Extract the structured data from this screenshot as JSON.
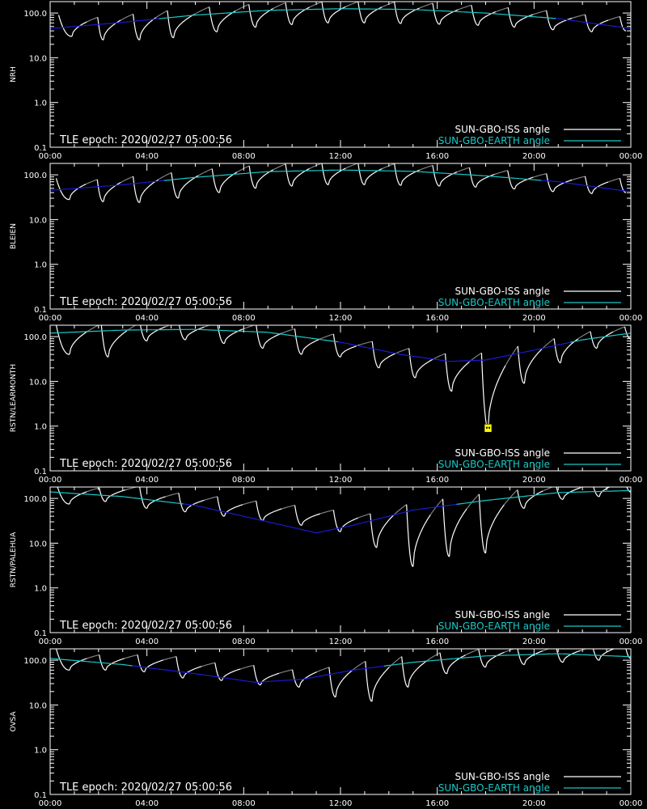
{
  "epoch_label": "TLE epoch: 2020/02/27 05:00:56",
  "legend": [
    {
      "label": "SUN-GBO-ISS angle",
      "color": "#ffffff"
    },
    {
      "label": "SUN-GBO-EARTH angle",
      "color": "#19c8c8"
    }
  ],
  "colors": {
    "background": "#000000",
    "axes": "#ffffff",
    "iss_daylight": "#ffffff",
    "iss_shadow": "#808080",
    "earth_visible": "#19c8c8",
    "earth_hidden": "#1a1ad2",
    "marker": "#ffff00"
  },
  "x_ticks": [
    "00:00",
    "04:00",
    "08:00",
    "12:00",
    "16:00",
    "20:00",
    "00:00"
  ],
  "y_ticks": [
    "100.0",
    "10.0",
    "1.0",
    "0.1"
  ],
  "chart_data": [
    {
      "type": "line",
      "ylabel": "NRH",
      "yscale": "log",
      "ylim": [
        0.1,
        180
      ],
      "xlim": [
        0,
        24
      ],
      "earth_curve": [
        [
          0,
          45
        ],
        [
          3,
          62
        ],
        [
          6,
          90
        ],
        [
          9,
          115
        ],
        [
          12,
          125
        ],
        [
          15,
          120
        ],
        [
          18,
          100
        ],
        [
          21,
          75
        ],
        [
          24,
          45
        ]
      ],
      "iss_minima": [
        [
          0.9,
          30
        ],
        [
          2.2,
          25
        ],
        [
          3.7,
          25
        ],
        [
          5.1,
          28
        ],
        [
          6.9,
          38
        ],
        [
          8.5,
          48
        ],
        [
          10.0,
          55
        ],
        [
          11.5,
          60
        ],
        [
          13.0,
          60
        ],
        [
          14.5,
          58
        ],
        [
          16.1,
          56
        ],
        [
          17.7,
          53
        ],
        [
          19.2,
          48
        ],
        [
          20.8,
          42
        ],
        [
          22.4,
          38
        ],
        [
          23.8,
          40
        ]
      ],
      "marker_x": null
    },
    {
      "type": "line",
      "ylabel": "BLEIEN",
      "yscale": "log",
      "ylim": [
        0.1,
        180
      ],
      "xlim": [
        0,
        24
      ],
      "earth_curve": [
        [
          0,
          45
        ],
        [
          3,
          60
        ],
        [
          6,
          88
        ],
        [
          9,
          118
        ],
        [
          12,
          128
        ],
        [
          15,
          120
        ],
        [
          18,
          95
        ],
        [
          21,
          70
        ],
        [
          24,
          42
        ]
      ],
      "iss_minima": [
        [
          0.8,
          28
        ],
        [
          2.2,
          25
        ],
        [
          3.7,
          24
        ],
        [
          5.3,
          30
        ],
        [
          7.0,
          40
        ],
        [
          8.5,
          50
        ],
        [
          10.0,
          56
        ],
        [
          11.5,
          60
        ],
        [
          13.0,
          60
        ],
        [
          14.5,
          58
        ],
        [
          16.1,
          56
        ],
        [
          17.6,
          53
        ],
        [
          19.2,
          48
        ],
        [
          20.8,
          42
        ],
        [
          22.4,
          38
        ],
        [
          23.8,
          40
        ]
      ],
      "marker_x": null
    },
    {
      "type": "line",
      "ylabel": "RSTN/LEARMONTH",
      "yscale": "log",
      "ylim": [
        0.1,
        180
      ],
      "xlim": [
        0,
        24
      ],
      "earth_curve": [
        [
          0,
          120
        ],
        [
          3,
          140
        ],
        [
          6,
          145
        ],
        [
          9,
          125
        ],
        [
          12,
          75
        ],
        [
          14.5,
          40
        ],
        [
          16.5,
          28
        ],
        [
          18,
          30
        ],
        [
          20,
          50
        ],
        [
          22,
          85
        ],
        [
          24,
          120
        ]
      ],
      "iss_minima": [
        [
          0.8,
          40
        ],
        [
          2.4,
          35
        ],
        [
          4.0,
          80
        ],
        [
          5.6,
          85
        ],
        [
          7.2,
          70
        ],
        [
          8.8,
          55
        ],
        [
          10.4,
          40
        ],
        [
          12.0,
          35
        ],
        [
          13.6,
          20
        ],
        [
          15.1,
          12
        ],
        [
          16.6,
          6
        ],
        [
          18.1,
          0.9
        ],
        [
          19.6,
          9
        ],
        [
          21.1,
          26
        ],
        [
          22.6,
          55
        ],
        [
          24.0,
          90
        ]
      ],
      "marker_x": 18.1
    },
    {
      "type": "line",
      "ylabel": "RSTN/PALEHUA",
      "yscale": "log",
      "ylim": [
        0.1,
        180
      ],
      "xlim": [
        0,
        24
      ],
      "earth_curve": [
        [
          0,
          140
        ],
        [
          3,
          110
        ],
        [
          6,
          70
        ],
        [
          9,
          30
        ],
        [
          11,
          17
        ],
        [
          12.5,
          25
        ],
        [
          15,
          55
        ],
        [
          18,
          90
        ],
        [
          21,
          135
        ],
        [
          24,
          150
        ]
      ],
      "iss_minima": [
        [
          0.8,
          75
        ],
        [
          2.3,
          85
        ],
        [
          4.0,
          60
        ],
        [
          5.6,
          50
        ],
        [
          7.2,
          40
        ],
        [
          8.8,
          32
        ],
        [
          10.4,
          25
        ],
        [
          12.0,
          18
        ],
        [
          13.5,
          8
        ],
        [
          15.0,
          3
        ],
        [
          16.5,
          5
        ],
        [
          18.0,
          6
        ],
        [
          19.6,
          60
        ],
        [
          21.2,
          95
        ],
        [
          22.7,
          110
        ],
        [
          24.0,
          140
        ]
      ],
      "marker_x": null
    },
    {
      "type": "line",
      "ylabel": "OVSA",
      "yscale": "log",
      "ylim": [
        0.1,
        180
      ],
      "xlim": [
        0,
        24
      ],
      "earth_curve": [
        [
          0,
          110
        ],
        [
          3,
          80
        ],
        [
          6,
          50
        ],
        [
          8.5,
          32
        ],
        [
          10.5,
          38
        ],
        [
          12.5,
          60
        ],
        [
          15,
          90
        ],
        [
          18,
          125
        ],
        [
          21,
          140
        ],
        [
          24,
          120
        ]
      ],
      "iss_minima": [
        [
          0.8,
          60
        ],
        [
          2.3,
          60
        ],
        [
          3.9,
          55
        ],
        [
          5.5,
          40
        ],
        [
          7.1,
          35
        ],
        [
          8.7,
          28
        ],
        [
          10.3,
          25
        ],
        [
          11.8,
          15
        ],
        [
          13.3,
          12
        ],
        [
          14.8,
          25
        ],
        [
          16.4,
          50
        ],
        [
          18.0,
          70
        ],
        [
          19.6,
          80
        ],
        [
          21.2,
          90
        ],
        [
          22.7,
          100
        ],
        [
          24.0,
          110
        ]
      ],
      "marker_x": null
    }
  ]
}
